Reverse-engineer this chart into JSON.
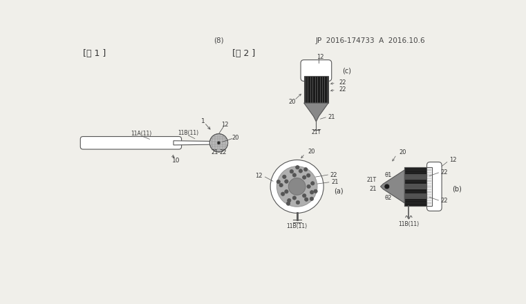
{
  "bg_color": "#f0efea",
  "header_num": "(8)",
  "header_patent": "JP  2016-174733  A  2016.10.6",
  "fig1_label": "[図 1 ]",
  "fig2_label": "[図 2 ]",
  "lc": "#555555",
  "dark": "#1a1a1a",
  "mid": "#888888",
  "light": "#cccccc",
  "white": "#ffffff"
}
